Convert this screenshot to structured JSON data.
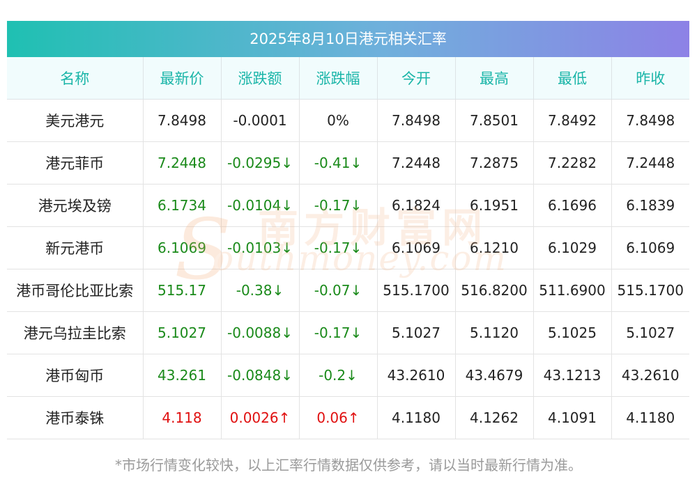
{
  "title": "2025年8月10日港元相关汇率",
  "columns": [
    "名称",
    "最新价",
    "涨跌额",
    "涨跌幅",
    "今开",
    "最高",
    "最低",
    "昨收"
  ],
  "rows": [
    {
      "name": "美元港元",
      "latest": "7.8498",
      "change": "-0.0001",
      "change_pct": "0%",
      "open": "7.8498",
      "high": "7.8501",
      "low": "7.8492",
      "prev_close": "7.8498",
      "trend": "flat"
    },
    {
      "name": "港元菲币",
      "latest": "7.2448",
      "change": "-0.0295↓",
      "change_pct": "-0.41↓",
      "open": "7.2448",
      "high": "7.2875",
      "low": "7.2282",
      "prev_close": "7.2448",
      "trend": "down"
    },
    {
      "name": "港元埃及镑",
      "latest": "6.1734",
      "change": "-0.0104↓",
      "change_pct": "-0.17↓",
      "open": "6.1824",
      "high": "6.1951",
      "low": "6.1696",
      "prev_close": "6.1839",
      "trend": "down"
    },
    {
      "name": "新元港币",
      "latest": "6.1069",
      "change": "-0.0103↓",
      "change_pct": "-0.17↓",
      "open": "6.1069",
      "high": "6.1210",
      "low": "6.1029",
      "prev_close": "6.1069",
      "trend": "down"
    },
    {
      "name": "港币哥伦比亚比索",
      "latest": "515.17",
      "change": "-0.38↓",
      "change_pct": "-0.07↓",
      "open": "515.1700",
      "high": "516.8200",
      "low": "511.6900",
      "prev_close": "515.1700",
      "trend": "down"
    },
    {
      "name": "港元乌拉圭比索",
      "latest": "5.1027",
      "change": "-0.0088↓",
      "change_pct": "-0.17↓",
      "open": "5.1027",
      "high": "5.1120",
      "low": "5.1025",
      "prev_close": "5.1027",
      "trend": "down"
    },
    {
      "name": "港币匈币",
      "latest": "43.261",
      "change": "-0.0848↓",
      "change_pct": "-0.2↓",
      "open": "43.2610",
      "high": "43.4679",
      "low": "43.1213",
      "prev_close": "43.2610",
      "trend": "down"
    },
    {
      "name": "港币泰铢",
      "latest": "4.118",
      "change": "0.0026↑",
      "change_pct": "0.06↑",
      "open": "4.1180",
      "high": "4.1262",
      "low": "4.1091",
      "prev_close": "4.1180",
      "trend": "up"
    }
  ],
  "footnote": "*市场行情变化较快，以上汇率行情数据仅供参考，请以当时最新行情为准。",
  "watermark": {
    "cn": "南方财富网",
    "en": "outhmoney.com",
    "s": "S"
  },
  "colors": {
    "header_text": "#1ab5a8",
    "down": "#1a8a1a",
    "up": "#e01010",
    "title_gradient": [
      "#1fc0b2",
      "#8d82e6"
    ]
  }
}
